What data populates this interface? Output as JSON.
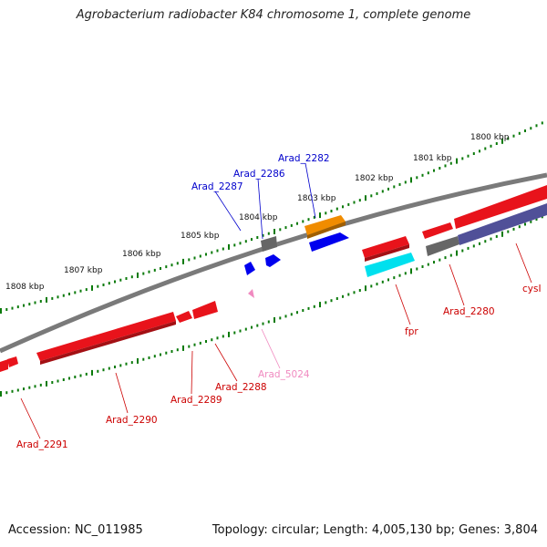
{
  "title": "Agrobacterium radiobacter K84 chromosome 1, complete genome",
  "footer": {
    "accession": "Accession: NC_011985",
    "summary": "Topology: circular; Length: 4,005,130 bp; Genes: 3,804"
  },
  "scale": {
    "ticks": [
      "1800 kbp",
      "1801 kbp",
      "1802 kbp",
      "1803 kbp",
      "1804 kbp",
      "1805 kbp",
      "1806 kbp",
      "1807 kbp",
      "1808 kbp"
    ]
  },
  "colors": {
    "red": "#e8131b",
    "dark_red": "#a31014",
    "blue": "#0000ee",
    "orange": "#f08c00",
    "cyan": "#00e0ee",
    "gray": "#666666",
    "slate": "#505098",
    "pink": "#f08ac0",
    "tick_green": "#0a7a0a"
  },
  "genes": [
    {
      "label": "Arad_2282",
      "color": "#0000cc"
    },
    {
      "label": "Arad_2286",
      "color": "#0000cc"
    },
    {
      "label": "Arad_2287",
      "color": "#0000cc"
    },
    {
      "label": "cysI",
      "color": "#cc0000"
    },
    {
      "label": "Arad_2280",
      "color": "#cc0000"
    },
    {
      "label": "fpr",
      "color": "#cc0000"
    },
    {
      "label": "Arad_5024",
      "color": "#f08ac0"
    },
    {
      "label": "Arad_2288",
      "color": "#cc0000"
    },
    {
      "label": "Arad_2289",
      "color": "#cc0000"
    },
    {
      "label": "Arad_2290",
      "color": "#cc0000"
    },
    {
      "label": "Arad_2291",
      "color": "#cc0000"
    }
  ]
}
